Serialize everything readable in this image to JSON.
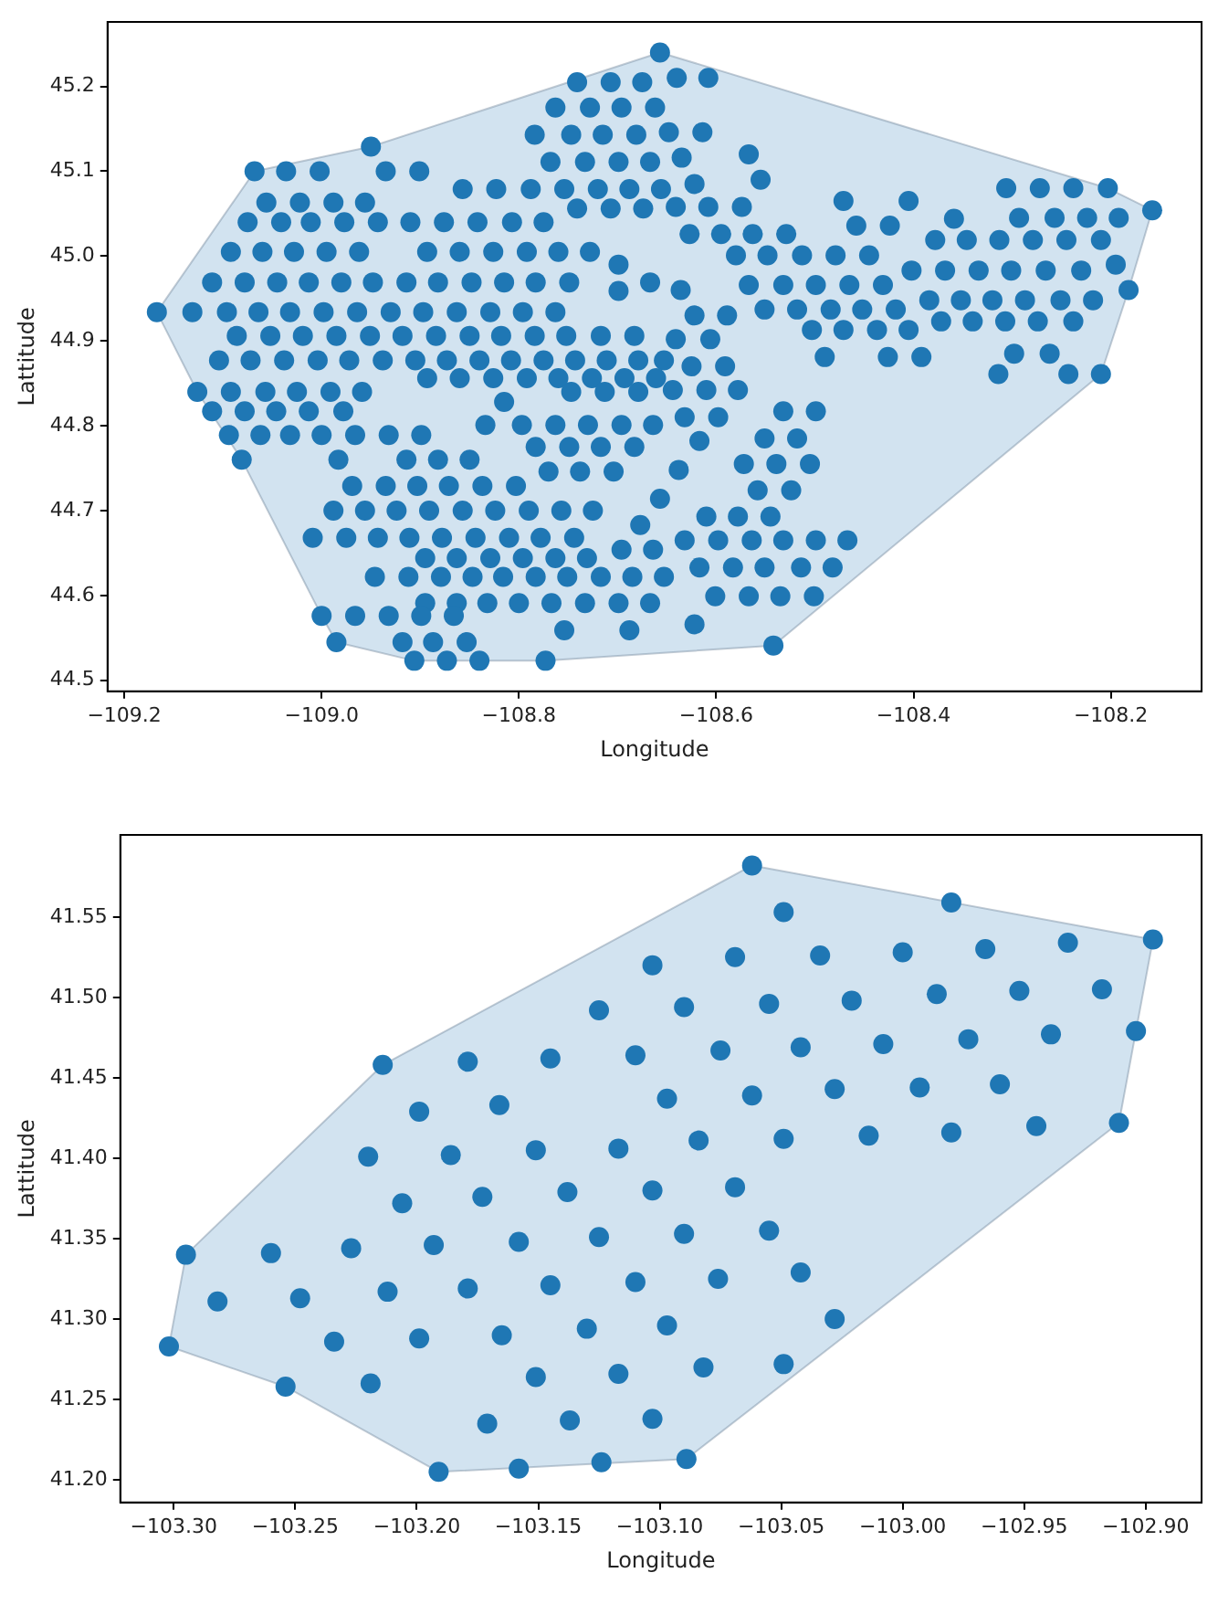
{
  "chart_data": [
    {
      "type": "scatter",
      "xlabel": "Longitude",
      "ylabel": "Lattitude",
      "xlim": [
        -109.217,
        -108.108
      ],
      "ylim": [
        44.487,
        45.276
      ],
      "xticks": [
        {
          "value": -109.2,
          "label": "−109.2"
        },
        {
          "value": -109.0,
          "label": "−109.0"
        },
        {
          "value": -108.8,
          "label": "−108.8"
        },
        {
          "value": -108.6,
          "label": "−108.6"
        },
        {
          "value": -108.4,
          "label": "−108.4"
        },
        {
          "value": -108.2,
          "label": "−108.2"
        }
      ],
      "yticks": [
        {
          "value": 44.5,
          "label": "44.5"
        },
        {
          "value": 44.6,
          "label": "44.6"
        },
        {
          "value": 44.7,
          "label": "44.7"
        },
        {
          "value": 44.8,
          "label": "44.8"
        },
        {
          "value": 44.9,
          "label": "44.9"
        },
        {
          "value": 45.0,
          "label": "45.0"
        },
        {
          "value": 45.1,
          "label": "45.1"
        },
        {
          "value": 45.2,
          "label": "45.2"
        }
      ],
      "series": [
        {
          "type": "area",
          "color": "#d2e3f0",
          "x": [
            -109.167,
            -109.068,
            -108.95,
            -108.657,
            -108.203,
            -108.158,
            -108.182,
            -108.21,
            -108.542,
            -108.773,
            -108.906,
            -108.985,
            -109.0,
            -109.081,
            -109.126,
            -109.167
          ],
          "values": [
            44.934,
            45.1,
            45.129,
            45.24,
            45.08,
            45.054,
            44.96,
            44.861,
            44.541,
            44.523,
            44.523,
            44.545,
            44.576,
            44.76,
            44.84,
            44.934
          ]
        },
        {
          "marker": "circle",
          "color": "#1f77b4",
          "x": [
            -108.657,
            -108.741,
            -108.707,
            -108.675,
            -108.64,
            -108.608,
            -108.763,
            -108.728,
            -108.696,
            -108.662,
            -108.784,
            -108.747,
            -108.715,
            -108.681,
            -108.648,
            -108.614,
            -108.95,
            -108.768,
            -108.733,
            -108.699,
            -108.667,
            -108.567,
            -108.635,
            -109.068,
            -109.036,
            -109.002,
            -108.935,
            -108.901,
            -108.555,
            -108.622,
            -108.857,
            -108.823,
            -108.788,
            -108.754,
            -108.72,
            -108.688,
            -108.656,
            -108.306,
            -108.272,
            -108.238,
            -108.203,
            -109.056,
            -109.022,
            -108.988,
            -108.956,
            -108.471,
            -108.405,
            -108.741,
            -108.707,
            -108.674,
            -108.641,
            -108.608,
            -108.574,
            -108.158,
            -108.293,
            -108.257,
            -108.224,
            -108.192,
            -108.359,
            -109.075,
            -109.041,
            -109.011,
            -108.977,
            -108.943,
            -108.91,
            -108.876,
            -108.842,
            -108.807,
            -108.775,
            -108.458,
            -108.424,
            -108.627,
            -108.595,
            -108.563,
            -108.529,
            -108.378,
            -108.346,
            -108.313,
            -108.279,
            -108.245,
            -108.21,
            -109.092,
            -109.06,
            -109.028,
            -108.995,
            -108.962,
            -108.893,
            -108.86,
            -108.826,
            -108.792,
            -108.76,
            -108.728,
            -108.58,
            -108.548,
            -108.513,
            -108.479,
            -108.445,
            -108.699,
            -108.195,
            -108.402,
            -108.368,
            -108.334,
            -108.301,
            -108.266,
            -108.23,
            -109.111,
            -109.078,
            -109.045,
            -109.013,
            -108.98,
            -108.948,
            -108.914,
            -108.882,
            -108.848,
            -108.815,
            -108.783,
            -108.749,
            -108.667,
            -108.567,
            -108.532,
            -108.499,
            -108.465,
            -108.431,
            -108.699,
            -108.636,
            -108.182,
            -108.384,
            -108.352,
            -108.32,
            -108.287,
            -108.251,
            -108.218,
            -109.167,
            -109.131,
            -109.096,
            -109.064,
            -109.032,
            -108.998,
            -108.964,
            -108.93,
            -108.897,
            -108.863,
            -108.829,
            -108.796,
            -108.763,
            -108.551,
            -108.518,
            -108.484,
            -108.452,
            -108.418,
            -108.622,
            -108.589,
            -108.372,
            -108.34,
            -108.307,
            -108.274,
            -108.238,
            -108.503,
            -108.471,
            -108.437,
            -108.405,
            -109.086,
            -109.052,
            -109.019,
            -108.985,
            -108.951,
            -108.918,
            -108.884,
            -108.85,
            -108.818,
            -108.784,
            -108.752,
            -108.717,
            -108.683,
            -108.641,
            -108.606,
            -108.298,
            -108.262,
            -108.49,
            -108.426,
            -108.392,
            -109.104,
            -109.072,
            -109.038,
            -109.004,
            -108.972,
            -108.938,
            -108.905,
            -108.873,
            -108.84,
            -108.808,
            -108.775,
            -108.743,
            -108.711,
            -108.679,
            -108.653,
            -108.625,
            -108.591,
            -108.314,
            -108.243,
            -108.21,
            -108.893,
            -108.86,
            -108.826,
            -108.792,
            -108.76,
            -108.726,
            -108.693,
            -108.661,
            -108.644,
            -108.61,
            -108.578,
            -109.126,
            -109.092,
            -109.057,
            -109.025,
            -108.991,
            -108.959,
            -108.747,
            -108.713,
            -108.679,
            -108.815,
            -109.111,
            -109.078,
            -109.046,
            -109.013,
            -108.978,
            -108.532,
            -108.499,
            -108.632,
            -108.598,
            -108.834,
            -108.797,
            -108.763,
            -108.73,
            -108.696,
            -108.664,
            -109.094,
            -109.062,
            -109.032,
            -109.0,
            -108.966,
            -108.932,
            -108.899,
            -108.551,
            -108.518,
            -108.617,
            -108.783,
            -108.749,
            -108.717,
            -108.683,
            -109.081,
            -108.983,
            -108.914,
            -108.882,
            -108.85,
            -108.572,
            -108.539,
            -108.505,
            -108.638,
            -108.77,
            -108.738,
            -108.704,
            -108.969,
            -108.935,
            -108.903,
            -108.871,
            -108.837,
            -108.803,
            -108.558,
            -108.524,
            -108.657,
            -108.988,
            -108.956,
            -108.924,
            -108.891,
            -108.857,
            -108.824,
            -108.79,
            -108.757,
            -108.725,
            -108.61,
            -108.578,
            -108.545,
            -108.677,
            -109.009,
            -108.975,
            -108.943,
            -108.911,
            -108.878,
            -108.844,
            -108.81,
            -108.778,
            -108.744,
            -108.632,
            -108.598,
            -108.564,
            -108.532,
            -108.499,
            -108.467,
            -108.696,
            -108.664,
            -108.895,
            -108.863,
            -108.829,
            -108.796,
            -108.763,
            -108.731,
            -108.617,
            -108.583,
            -108.551,
            -108.514,
            -108.482,
            -108.946,
            -108.912,
            -108.879,
            -108.847,
            -108.816,
            -108.783,
            -108.751,
            -108.717,
            -108.685,
            -108.653,
            -108.601,
            -108.567,
            -108.535,
            -108.501,
            -108.895,
            -108.863,
            -108.832,
            -108.8,
            -108.767,
            -108.733,
            -108.699,
            -108.667,
            -109.0,
            -108.966,
            -108.932,
            -108.899,
            -108.866,
            -108.622,
            -108.754,
            -108.688,
            -108.985,
            -108.918,
            -108.887,
            -108.853,
            -108.542,
            -108.906,
            -108.873,
            -108.84,
            -108.773
          ],
          "values": [
            45.24,
            45.205,
            45.205,
            45.205,
            45.21,
            45.21,
            45.175,
            45.175,
            45.175,
            45.175,
            45.143,
            45.143,
            45.143,
            45.143,
            45.146,
            45.146,
            45.129,
            45.111,
            45.111,
            45.111,
            45.111,
            45.12,
            45.116,
            45.1,
            45.1,
            45.1,
            45.1,
            45.1,
            45.09,
            45.085,
            45.079,
            45.079,
            45.079,
            45.079,
            45.079,
            45.079,
            45.079,
            45.08,
            45.08,
            45.08,
            45.08,
            45.063,
            45.063,
            45.063,
            45.063,
            45.065,
            45.065,
            45.056,
            45.056,
            45.056,
            45.058,
            45.058,
            45.058,
            45.054,
            45.045,
            45.045,
            45.045,
            45.045,
            45.044,
            45.04,
            45.04,
            45.04,
            45.04,
            45.04,
            45.04,
            45.04,
            45.04,
            45.04,
            45.04,
            45.036,
            45.036,
            45.026,
            45.026,
            45.026,
            45.026,
            45.019,
            45.019,
            45.019,
            45.019,
            45.019,
            45.019,
            45.005,
            45.005,
            45.005,
            45.005,
            45.005,
            45.005,
            45.005,
            45.005,
            45.005,
            45.005,
            45.005,
            45.001,
            45.001,
            45.001,
            45.001,
            45.001,
            44.99,
            44.99,
            44.983,
            44.983,
            44.983,
            44.983,
            44.983,
            44.983,
            44.969,
            44.969,
            44.969,
            44.969,
            44.969,
            44.969,
            44.969,
            44.969,
            44.969,
            44.969,
            44.969,
            44.969,
            44.969,
            44.966,
            44.966,
            44.966,
            44.966,
            44.966,
            44.959,
            44.96,
            44.96,
            44.948,
            44.948,
            44.948,
            44.948,
            44.948,
            44.948,
            44.934,
            44.934,
            44.934,
            44.934,
            44.934,
            44.934,
            44.934,
            44.934,
            44.934,
            44.934,
            44.934,
            44.934,
            44.934,
            44.937,
            44.937,
            44.937,
            44.937,
            44.937,
            44.93,
            44.93,
            44.923,
            44.923,
            44.923,
            44.923,
            44.923,
            44.913,
            44.913,
            44.913,
            44.913,
            44.906,
            44.906,
            44.906,
            44.906,
            44.906,
            44.906,
            44.906,
            44.906,
            44.906,
            44.906,
            44.906,
            44.906,
            44.906,
            44.902,
            44.902,
            44.885,
            44.885,
            44.881,
            44.881,
            44.881,
            44.877,
            44.877,
            44.877,
            44.877,
            44.877,
            44.877,
            44.877,
            44.877,
            44.877,
            44.877,
            44.877,
            44.877,
            44.877,
            44.877,
            44.877,
            44.87,
            44.87,
            44.861,
            44.861,
            44.861,
            44.856,
            44.856,
            44.856,
            44.856,
            44.856,
            44.856,
            44.856,
            44.856,
            44.842,
            44.842,
            44.842,
            44.84,
            44.84,
            44.84,
            44.84,
            44.84,
            44.84,
            44.84,
            44.84,
            44.84,
            44.828,
            44.817,
            44.817,
            44.817,
            44.817,
            44.817,
            44.817,
            44.817,
            44.81,
            44.81,
            44.801,
            44.801,
            44.801,
            44.801,
            44.801,
            44.801,
            44.789,
            44.789,
            44.789,
            44.789,
            44.789,
            44.789,
            44.789,
            44.785,
            44.785,
            44.782,
            44.775,
            44.775,
            44.775,
            44.775,
            44.76,
            44.76,
            44.76,
            44.76,
            44.76,
            44.755,
            44.755,
            44.755,
            44.748,
            44.746,
            44.746,
            44.746,
            44.729,
            44.729,
            44.729,
            44.729,
            44.729,
            44.729,
            44.724,
            44.724,
            44.714,
            44.7,
            44.7,
            44.7,
            44.7,
            44.7,
            44.7,
            44.7,
            44.7,
            44.7,
            44.693,
            44.693,
            44.693,
            44.683,
            44.668,
            44.668,
            44.668,
            44.668,
            44.668,
            44.668,
            44.668,
            44.668,
            44.668,
            44.665,
            44.665,
            44.665,
            44.665,
            44.665,
            44.665,
            44.654,
            44.654,
            44.644,
            44.644,
            44.644,
            44.644,
            44.644,
            44.644,
            44.633,
            44.633,
            44.633,
            44.633,
            44.633,
            44.622,
            44.622,
            44.622,
            44.622,
            44.622,
            44.622,
            44.622,
            44.622,
            44.622,
            44.622,
            44.599,
            44.599,
            44.599,
            44.599,
            44.591,
            44.591,
            44.591,
            44.591,
            44.591,
            44.591,
            44.591,
            44.591,
            44.576,
            44.576,
            44.576,
            44.576,
            44.576,
            44.566,
            44.559,
            44.559,
            44.545,
            44.545,
            44.545,
            44.545,
            44.541,
            44.523,
            44.523,
            44.523,
            44.523
          ]
        }
      ]
    },
    {
      "type": "scatter",
      "xlabel": "Longitude",
      "ylabel": "Lattitude",
      "xlim": [
        -103.322,
        -102.877
      ],
      "ylim": [
        41.186,
        41.601
      ],
      "xticks": [
        {
          "value": -103.3,
          "label": "−103.30"
        },
        {
          "value": -103.25,
          "label": "−103.25"
        },
        {
          "value": -103.2,
          "label": "−103.20"
        },
        {
          "value": -103.15,
          "label": "−103.15"
        },
        {
          "value": -103.1,
          "label": "−103.10"
        },
        {
          "value": -103.05,
          "label": "−103.05"
        },
        {
          "value": -103.0,
          "label": "−103.00"
        },
        {
          "value": -102.95,
          "label": "−102.95"
        },
        {
          "value": -102.9,
          "label": "−102.90"
        }
      ],
      "yticks": [
        {
          "value": 41.2,
          "label": "41.20"
        },
        {
          "value": 41.25,
          "label": "41.25"
        },
        {
          "value": 41.3,
          "label": "41.30"
        },
        {
          "value": 41.35,
          "label": "41.35"
        },
        {
          "value": 41.4,
          "label": "41.40"
        },
        {
          "value": 41.45,
          "label": "41.45"
        },
        {
          "value": 41.5,
          "label": "41.50"
        },
        {
          "value": 41.55,
          "label": "41.55"
        }
      ],
      "series": [
        {
          "type": "area",
          "color": "#d2e3f0",
          "x": [
            -103.302,
            -103.295,
            -103.214,
            -103.062,
            -102.897,
            -102.904,
            -102.911,
            -103.089,
            -103.191,
            -103.254,
            -103.302
          ],
          "values": [
            41.283,
            41.34,
            41.458,
            41.582,
            41.536,
            41.479,
            41.422,
            41.213,
            41.205,
            41.258,
            41.283
          ]
        },
        {
          "marker": "circle",
          "color": "#1f77b4",
          "x": [
            -103.125,
            -103.214,
            -103.179,
            -103.145,
            -103.11,
            -103.199,
            -103.166,
            -103.22,
            -103.186,
            -103.151,
            -103.117,
            -103.206,
            -103.173,
            -103.138,
            -103.295,
            -103.26,
            -103.227,
            -103.193,
            -103.158,
            -103.125,
            -103.282,
            -103.248,
            -103.212,
            -103.179,
            -103.145,
            -103.11,
            -103.234,
            -103.199,
            -103.165,
            -103.13,
            -103.302,
            -103.254,
            -103.219,
            -103.151,
            -103.117,
            -103.171,
            -103.137,
            -103.191,
            -103.158,
            -103.124,
            -103.062,
            -102.98,
            -103.049,
            -102.897,
            -102.932,
            -102.966,
            -103.0,
            -103.034,
            -103.069,
            -103.103,
            -102.918,
            -102.952,
            -102.986,
            -103.021,
            -103.055,
            -103.09,
            -102.904,
            -102.939,
            -102.973,
            -103.008,
            -103.042,
            -103.075,
            -102.96,
            -102.993,
            -103.028,
            -103.062,
            -103.097,
            -102.911,
            -102.945,
            -102.98,
            -103.014,
            -103.049,
            -103.084,
            -103.069,
            -103.103,
            -103.055,
            -103.09,
            -103.042,
            -103.076,
            -103.028,
            -103.097,
            -103.049,
            -103.082,
            -103.103,
            -103.089
          ],
          "values": [
            41.492,
            41.458,
            41.46,
            41.462,
            41.464,
            41.429,
            41.433,
            41.401,
            41.402,
            41.405,
            41.406,
            41.372,
            41.376,
            41.379,
            41.34,
            41.341,
            41.344,
            41.346,
            41.348,
            41.351,
            41.311,
            41.313,
            41.317,
            41.319,
            41.321,
            41.323,
            41.286,
            41.288,
            41.29,
            41.294,
            41.283,
            41.258,
            41.26,
            41.264,
            41.266,
            41.235,
            41.237,
            41.205,
            41.207,
            41.211,
            41.582,
            41.559,
            41.553,
            41.536,
            41.534,
            41.53,
            41.528,
            41.526,
            41.525,
            41.52,
            41.505,
            41.504,
            41.502,
            41.498,
            41.496,
            41.494,
            41.479,
            41.477,
            41.474,
            41.471,
            41.469,
            41.467,
            41.446,
            41.444,
            41.443,
            41.439,
            41.437,
            41.422,
            41.42,
            41.416,
            41.414,
            41.412,
            41.411,
            41.382,
            41.38,
            41.355,
            41.353,
            41.329,
            41.325,
            41.3,
            41.296,
            41.272,
            41.27,
            41.238,
            41.213
          ]
        }
      ]
    }
  ]
}
